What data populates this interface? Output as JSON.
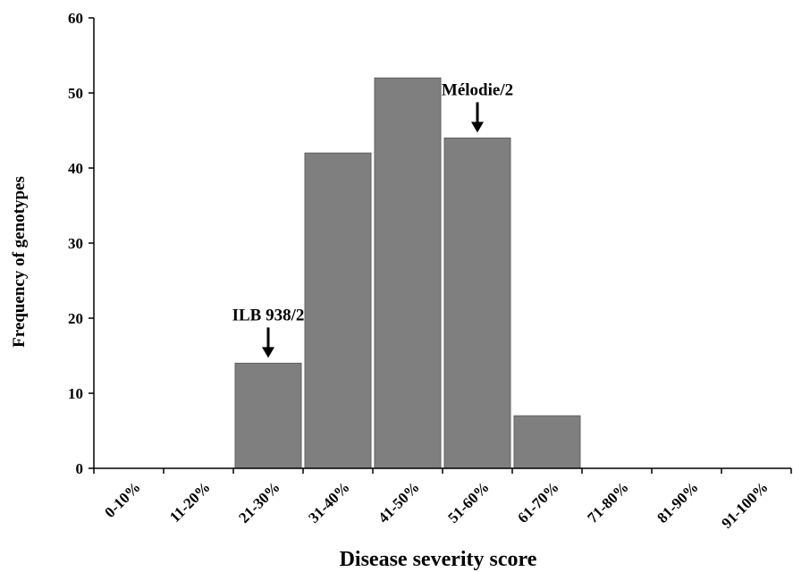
{
  "chart_data": {
    "type": "bar",
    "title": "",
    "xlabel": "Disease severity score",
    "ylabel": "Frequency of genotypes",
    "categories": [
      "0-10%",
      "11-20%",
      "21-30%",
      "31-40%",
      "41-50%",
      "51-60%",
      "61-70%",
      "71-80%",
      "81-90%",
      "91-100%"
    ],
    "values": [
      0,
      0,
      14,
      42,
      52,
      44,
      7,
      0,
      0,
      0
    ],
    "ylim": [
      0,
      60
    ],
    "yticks": [
      0,
      10,
      20,
      30,
      40,
      50,
      60
    ],
    "grid": false,
    "legend": "none",
    "bar_color": "#7f7f7f",
    "annotations": [
      {
        "text": "ILB 938/2",
        "category": "21-30%",
        "arrow": "down"
      },
      {
        "text": "Mélodie/2",
        "category": "51-60%",
        "arrow": "down"
      }
    ]
  }
}
